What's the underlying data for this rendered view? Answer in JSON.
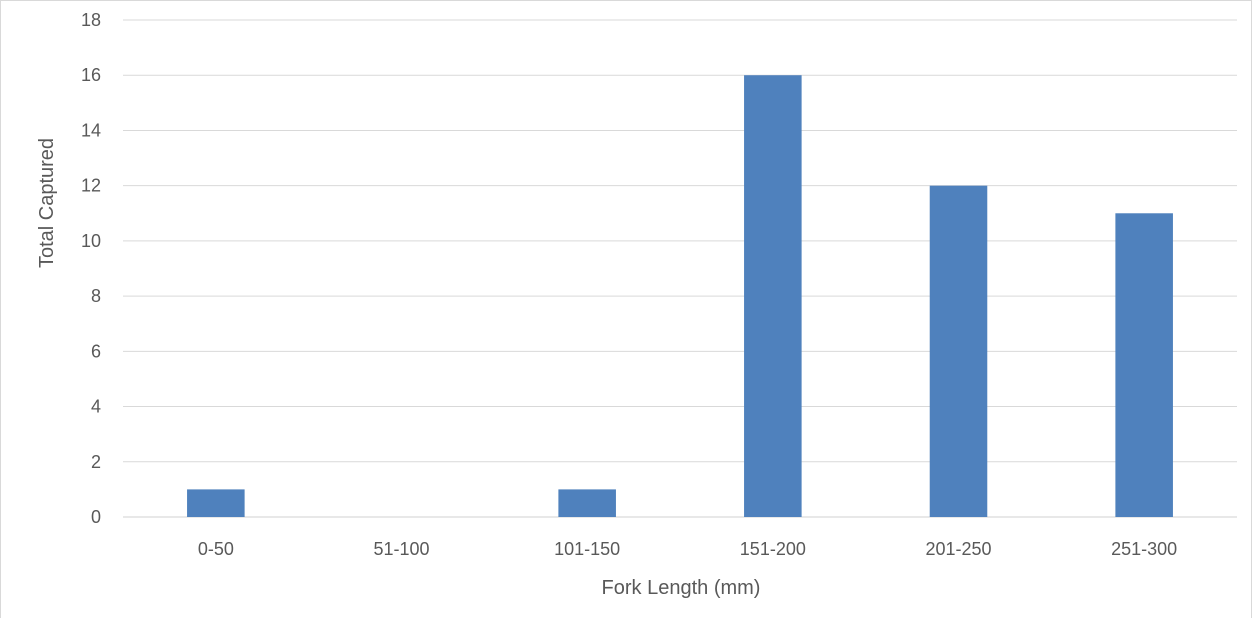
{
  "chart_data": {
    "type": "bar",
    "categories": [
      "0-50",
      "51-100",
      "101-150",
      "151-200",
      "201-250",
      "251-300"
    ],
    "values": [
      1,
      0,
      1,
      16,
      12,
      11
    ],
    "xlabel": "Fork Length (mm)",
    "ylabel": "Total Captured",
    "ylim": [
      0,
      18
    ],
    "yticks": [
      0,
      2,
      4,
      6,
      8,
      10,
      12,
      14,
      16,
      18
    ],
    "grid": true,
    "legend": "none",
    "bar_color": "#4f81bd"
  }
}
